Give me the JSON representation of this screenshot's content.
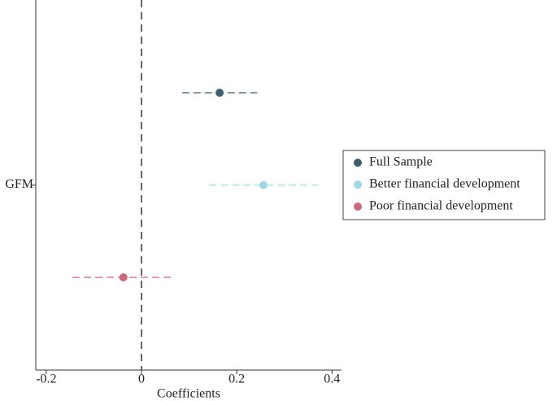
{
  "chart_data": {
    "type": "coefplot",
    "x_label": "Coefficients",
    "categories": [
      "GFM"
    ],
    "xlim": [
      -0.222,
      0.42
    ],
    "xticks": [
      -0.2,
      0,
      0.2,
      0.4
    ],
    "xline": 0,
    "legend": "right",
    "series": [
      {
        "name": "Full Sample",
        "color": "#3f5e6e",
        "values": [
          0.164
        ],
        "ci_low": [
          0.085
        ],
        "ci_high": [
          0.243
        ]
      },
      {
        "name": "Better financial development",
        "color": "#9fd8e3",
        "values": [
          0.256
        ],
        "ci_low": [
          0.142
        ],
        "ci_high": [
          0.374
        ]
      },
      {
        "name": "Poor financial development",
        "color": "#c96b7d",
        "values": [
          -0.038
        ],
        "ci_low": [
          -0.145
        ],
        "ci_high": [
          0.067
        ]
      }
    ]
  }
}
